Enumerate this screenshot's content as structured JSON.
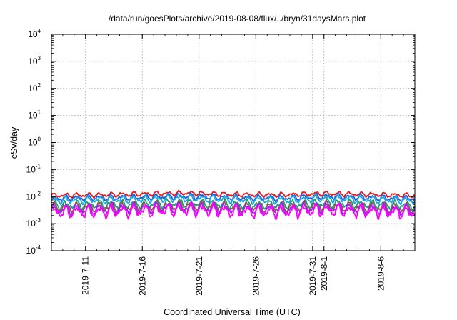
{
  "chart_data": {
    "type": "line",
    "title": "/data/run/goesPlots/archive/2019-08-08/flux/../bryn/31daysMars.plot",
    "xlabel": "Coordinated Universal Time (UTC)",
    "ylabel": "cSv/day",
    "yscale": "log",
    "ylim": [
      0.0001,
      10000
    ],
    "yticks": [
      {
        "base": "10",
        "exp": "-4",
        "value": 0.0001
      },
      {
        "base": "10",
        "exp": "-3",
        "value": 0.001
      },
      {
        "base": "10",
        "exp": "-2",
        "value": 0.01
      },
      {
        "base": "10",
        "exp": "-1",
        "value": 0.1
      },
      {
        "base": "10",
        "exp": "0",
        "value": 1
      },
      {
        "base": "10",
        "exp": "1",
        "value": 10
      },
      {
        "base": "10",
        "exp": "2",
        "value": 100
      },
      {
        "base": "10",
        "exp": "3",
        "value": 1000
      },
      {
        "base": "10",
        "exp": "4",
        "value": 10000
      }
    ],
    "xlim": [
      "2019-07-08",
      "2019-08-09"
    ],
    "xticks": [
      {
        "label": "2019-7-11",
        "date": "2019-07-11"
      },
      {
        "label": "2019-7-16",
        "date": "2019-07-16"
      },
      {
        "label": "2019-7-21",
        "date": "2019-07-21"
      },
      {
        "label": "2019-7-26",
        "date": "2019-07-26"
      },
      {
        "label": "2019-7-31",
        "date": "2019-07-31"
      },
      {
        "label": "2019-8-1",
        "date": "2019-08-01"
      },
      {
        "label": "2019-8-6",
        "date": "2019-08-06"
      }
    ],
    "grid": true,
    "series": [
      {
        "color": "#e41a1c",
        "x": [
          "2019-07-08",
          "2019-07-12",
          "2019-07-16",
          "2019-07-20",
          "2019-07-24",
          "2019-07-28",
          "2019-08-01",
          "2019-08-05",
          "2019-08-09"
        ],
        "y": [
          0.011,
          0.0115,
          0.0125,
          0.0135,
          0.012,
          0.0115,
          0.013,
          0.012,
          0.011
        ]
      },
      {
        "color": "#1f5fe0",
        "x": [
          "2019-07-08",
          "2019-07-12",
          "2019-07-16",
          "2019-07-20",
          "2019-07-24",
          "2019-07-28",
          "2019-08-01",
          "2019-08-05",
          "2019-08-09"
        ],
        "y": [
          0.0085,
          0.009,
          0.0095,
          0.0105,
          0.0092,
          0.0088,
          0.0102,
          0.0092,
          0.0085
        ]
      },
      {
        "color": "#1aa6e0",
        "x": [
          "2019-07-08",
          "2019-07-12",
          "2019-07-16",
          "2019-07-20",
          "2019-07-24",
          "2019-07-28",
          "2019-08-01",
          "2019-08-05",
          "2019-08-09"
        ],
        "y": [
          0.0072,
          0.0076,
          0.008,
          0.0088,
          0.0078,
          0.0074,
          0.0086,
          0.0078,
          0.0072
        ]
      },
      {
        "color": "#1b9e77",
        "x": [
          "2019-07-08",
          "2019-07-12",
          "2019-07-16",
          "2019-07-20",
          "2019-07-24",
          "2019-07-28",
          "2019-08-01",
          "2019-08-05",
          "2019-08-09"
        ],
        "y": [
          0.0048,
          0.005,
          0.0053,
          0.0058,
          0.0051,
          0.0049,
          0.0057,
          0.0051,
          0.0047
        ]
      },
      {
        "color": "#8c564b",
        "x": [
          "2019-07-08",
          "2019-07-12",
          "2019-07-16",
          "2019-07-20",
          "2019-07-24",
          "2019-07-28",
          "2019-08-01",
          "2019-08-05",
          "2019-08-09"
        ],
        "y": [
          0.0038,
          0.004,
          0.0042,
          0.0046,
          0.0041,
          0.0039,
          0.0045,
          0.004,
          0.0037
        ]
      },
      {
        "color": "#a020f0",
        "x": [
          "2019-07-08",
          "2019-07-12",
          "2019-07-16",
          "2019-07-20",
          "2019-07-24",
          "2019-07-28",
          "2019-08-01",
          "2019-08-05",
          "2019-08-09"
        ],
        "y": [
          0.0032,
          0.0034,
          0.0036,
          0.0039,
          0.0035,
          0.0033,
          0.0038,
          0.0034,
          0.0031
        ]
      },
      {
        "color": "#ff00ff",
        "x": [
          "2019-07-08",
          "2019-07-12",
          "2019-07-16",
          "2019-07-20",
          "2019-07-24",
          "2019-07-28",
          "2019-08-01",
          "2019-08-05",
          "2019-08-09"
        ],
        "y": [
          0.0027,
          0.0028,
          0.003,
          0.0033,
          0.0029,
          0.0027,
          0.0032,
          0.0028,
          0.0026
        ]
      }
    ]
  }
}
